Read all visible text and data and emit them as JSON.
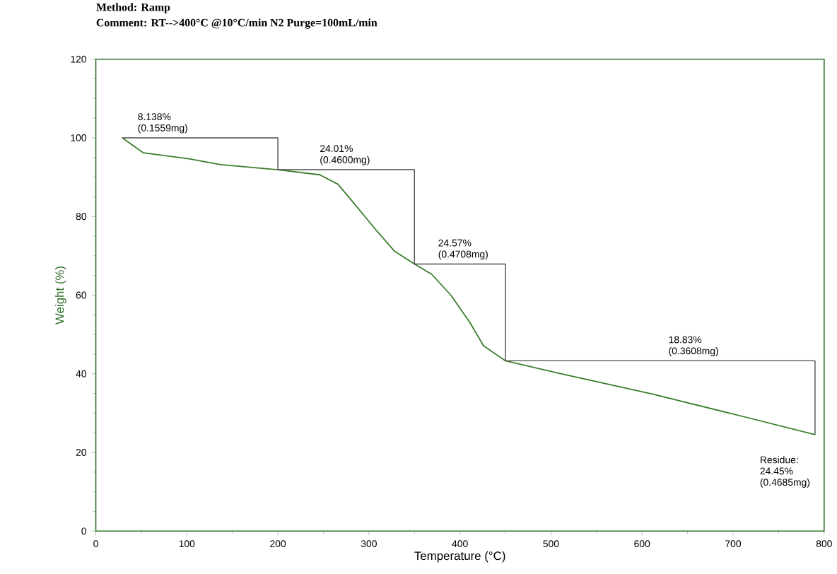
{
  "chart_data": {
    "type": "line",
    "title": "Method: Ramp",
    "subtitle": "Comment: RT-->400°C @10°C/min N2 Purge=100mL/min",
    "xlabel": "Temperature (°C)",
    "ylabel": "Weight (%)",
    "series": [
      {
        "color": "#3a7d2c",
        "x": [
          29,
          52,
          101,
          137,
          200,
          246,
          266,
          287,
          308,
          328,
          350,
          369,
          390,
          411,
          426,
          450,
          509,
          612,
          715,
          790
        ],
        "values": [
          100.0,
          96.2,
          94.7,
          93.2,
          91.9,
          90.6,
          88.2,
          82.4,
          76.5,
          71.2,
          67.9,
          65.3,
          60.0,
          53.0,
          47.1,
          43.3,
          40.1,
          34.8,
          28.9,
          24.5
        ]
      },
      {
        "type": "step",
        "color": "#4c4c4c",
        "x": [
          29,
          200,
          350,
          450,
          790
        ],
        "values": [
          100,
          91.9,
          67.9,
          43.3,
          24.45
        ]
      }
    ],
    "xlim": [
      0,
      800
    ],
    "ylim": [
      0,
      120
    ],
    "xticks": [
      0,
      100,
      200,
      300,
      400,
      500,
      600,
      700,
      800
    ],
    "yticks": [
      0,
      20,
      40,
      60,
      80,
      100,
      120
    ],
    "annotations": [
      {
        "text": "8.138% (0.1559mg)",
        "x": 80,
        "y": 100
      },
      {
        "text": "24.01% (0.4600mg)",
        "x": 280,
        "y": 91.9
      },
      {
        "text": "24.57% (0.4708mg)",
        "x": 410,
        "y": 67.9
      },
      {
        "text": "18.83% (0.3608mg)",
        "x": 663,
        "y": 43.3
      },
      "Residue: 24.45% (0.4685mg)"
    ]
  }
}
